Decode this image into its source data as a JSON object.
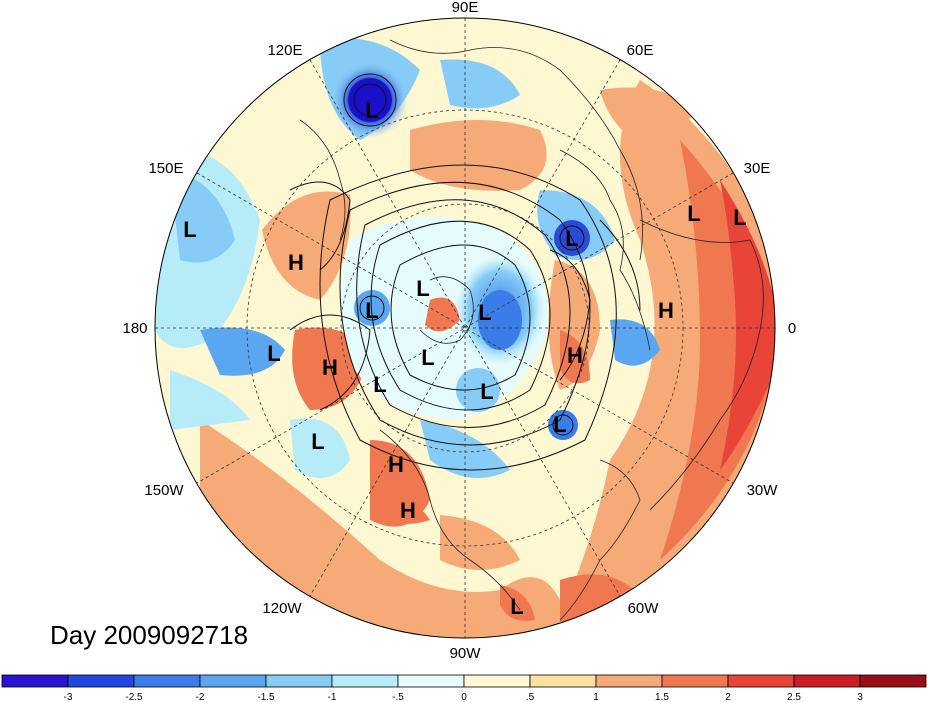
{
  "title": "Day 2009092718",
  "longitude_labels": [
    {
      "text": "90E"
    },
    {
      "text": "60E"
    },
    {
      "text": "30E"
    },
    {
      "text": "0"
    },
    {
      "text": "30W"
    },
    {
      "text": "60W"
    },
    {
      "text": "90W"
    },
    {
      "text": "120W"
    },
    {
      "text": "150W"
    },
    {
      "text": "180"
    },
    {
      "text": "150E"
    },
    {
      "text": "120E"
    }
  ],
  "pressure_centers": [
    {
      "type": "L"
    },
    {
      "type": "L"
    },
    {
      "type": "L"
    },
    {
      "type": "L"
    },
    {
      "type": "L"
    },
    {
      "type": "L"
    },
    {
      "type": "L"
    },
    {
      "type": "L"
    },
    {
      "type": "L"
    },
    {
      "type": "L"
    },
    {
      "type": "L"
    },
    {
      "type": "L"
    },
    {
      "type": "L"
    },
    {
      "type": "L"
    },
    {
      "type": "H"
    },
    {
      "type": "H"
    },
    {
      "type": "H"
    },
    {
      "type": "H"
    },
    {
      "type": "H"
    },
    {
      "type": "H"
    }
  ],
  "colorbar": {
    "tick_labels": [
      "-3",
      "-2.5",
      "-2",
      "-1.5",
      "-1",
      "-.5",
      "0",
      ".5",
      "1",
      "1.5",
      "2",
      "2.5",
      "3"
    ],
    "colors": [
      "#2a14d0",
      "#1f48e0",
      "#3a7ce8",
      "#5aa6f0",
      "#86ccf6",
      "#b5ecf8",
      "#e6fbfb",
      "#fdf7d2",
      "#fbe0a0",
      "#f6aa78",
      "#f07850",
      "#e84438",
      "#c81e24",
      "#9a0e18"
    ]
  }
}
